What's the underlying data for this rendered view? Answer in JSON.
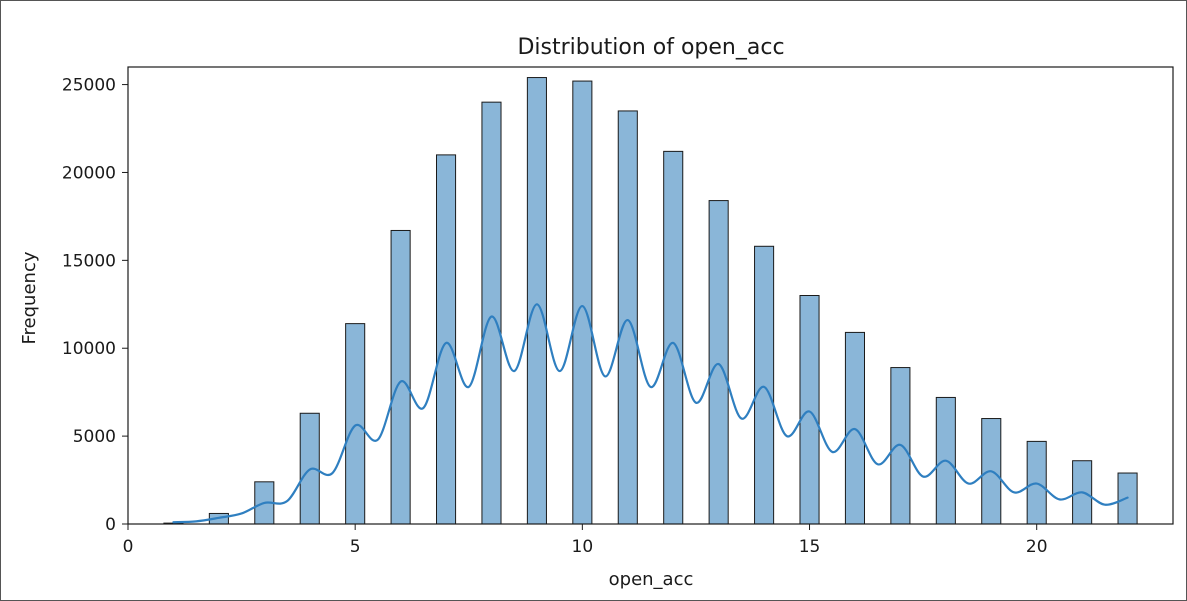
{
  "chart_data": {
    "type": "bar",
    "title": "Distribution of open_acc",
    "xlabel": "open_acc",
    "ylabel": "Frequency",
    "xlim": [
      0,
      23
    ],
    "ylim": [
      0,
      26000
    ],
    "x_ticks": [
      0,
      5,
      10,
      15,
      20
    ],
    "y_ticks": [
      0,
      5000,
      10000,
      15000,
      20000,
      25000
    ],
    "grid": false,
    "colors": {
      "bar_fill": "#8ab6d8",
      "bar_edge": "#1a1a1a",
      "kde_line": "#2f7fc0"
    },
    "bars": [
      {
        "x": 1,
        "value": 50
      },
      {
        "x": 2,
        "value": 600
      },
      {
        "x": 3,
        "value": 2400
      },
      {
        "x": 4,
        "value": 6300
      },
      {
        "x": 5,
        "value": 11400
      },
      {
        "x": 6,
        "value": 16700
      },
      {
        "x": 7,
        "value": 21000
      },
      {
        "x": 8,
        "value": 24000
      },
      {
        "x": 9,
        "value": 25400
      },
      {
        "x": 10,
        "value": 25200
      },
      {
        "x": 11,
        "value": 23500
      },
      {
        "x": 12,
        "value": 21200
      },
      {
        "x": 13,
        "value": 18400
      },
      {
        "x": 14,
        "value": 15800
      },
      {
        "x": 15,
        "value": 13000
      },
      {
        "x": 16,
        "value": 10900
      },
      {
        "x": 17,
        "value": 8900
      },
      {
        "x": 18,
        "value": 7200
      },
      {
        "x": 19,
        "value": 6000
      },
      {
        "x": 20,
        "value": 4700
      },
      {
        "x": 21,
        "value": 3600
      },
      {
        "x": 22,
        "value": 2900
      }
    ],
    "kde": {
      "x": [
        1.0,
        1.5,
        2.0,
        2.5,
        3.0,
        3.5,
        4.0,
        4.5,
        5.0,
        5.5,
        6.0,
        6.5,
        7.0,
        7.5,
        8.0,
        8.5,
        9.0,
        9.5,
        10.0,
        10.5,
        11.0,
        11.5,
        12.0,
        12.5,
        13.0,
        13.5,
        14.0,
        14.5,
        15.0,
        15.5,
        16.0,
        16.5,
        17.0,
        17.5,
        18.0,
        18.5,
        19.0,
        19.5,
        20.0,
        20.5,
        21.0,
        21.5,
        22.0
      ],
      "y": [
        100,
        150,
        350,
        600,
        1200,
        1300,
        3100,
        2900,
        5600,
        4800,
        8100,
        6600,
        10300,
        7800,
        11800,
        8700,
        12500,
        8700,
        12400,
        8400,
        11600,
        7800,
        10300,
        6900,
        9100,
        6000,
        7800,
        5000,
        6400,
        4100,
        5400,
        3400,
        4500,
        2700,
        3600,
        2300,
        3000,
        1800,
        2300,
        1400,
        1800,
        1100,
        1500
      ]
    }
  }
}
